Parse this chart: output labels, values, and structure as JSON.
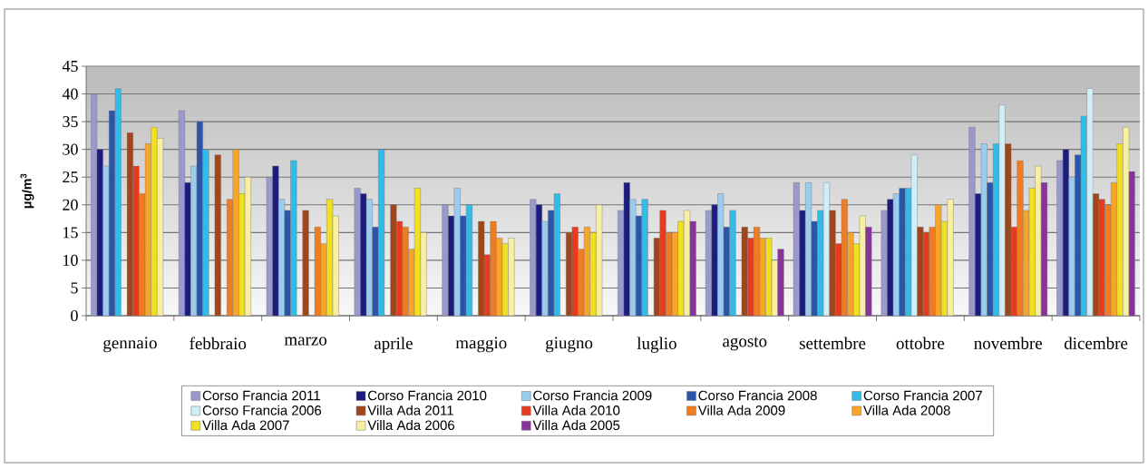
{
  "chart_data": {
    "type": "bar",
    "ylabel": "μg/m$^{3}$",
    "categories": [
      "gennaio",
      "febbraio",
      "marzo",
      "aprile",
      "maggio",
      "giugno",
      "luglio",
      "agosto",
      "settembre",
      "ottobre",
      "novembre",
      "dicembre"
    ],
    "series": [
      {
        "name": "Corso Francia 2011",
        "color": "#9999cc",
        "values": [
          40,
          37,
          25,
          23,
          20,
          21,
          19,
          19,
          24,
          19,
          34,
          28
        ]
      },
      {
        "name": "Corso Francia 2010",
        "color": "#1c1c80",
        "values": [
          30,
          24,
          27,
          22,
          18,
          20,
          24,
          20,
          19,
          21,
          22,
          30
        ]
      },
      {
        "name": "Corso Francia 2009",
        "color": "#99ccee",
        "values": [
          27,
          27,
          21,
          21,
          23,
          17,
          21,
          22,
          24,
          22,
          31,
          25
        ]
      },
      {
        "name": "Corso Francia 2008",
        "color": "#2a55a8",
        "values": [
          37,
          35,
          19,
          16,
          18,
          19,
          18,
          16,
          17,
          23,
          24,
          29
        ]
      },
      {
        "name": "Corso Francia 2007",
        "color": "#33bbe8",
        "values": [
          41,
          30,
          28,
          30,
          20,
          22,
          21,
          19,
          19,
          23,
          31,
          36
        ]
      },
      {
        "name": "Corso Francia 2006",
        "color": "#d0eef8",
        "values": [
          null,
          null,
          null,
          null,
          null,
          null,
          null,
          null,
          24,
          29,
          38,
          41
        ]
      },
      {
        "name": "Villa Ada 2011",
        "color": "#a0461a",
        "values": [
          33,
          29,
          19,
          20,
          17,
          15,
          14,
          16,
          19,
          16,
          31,
          22
        ]
      },
      {
        "name": "Villa Ada 2010",
        "color": "#e83a1e",
        "values": [
          27,
          null,
          null,
          17,
          11,
          16,
          19,
          14,
          13,
          15,
          16,
          21
        ]
      },
      {
        "name": "Villa Ada 2009",
        "color": "#f07c22",
        "values": [
          22,
          21,
          16,
          16,
          17,
          12,
          15,
          16,
          21,
          16,
          28,
          20
        ]
      },
      {
        "name": "Villa Ada 2008",
        "color": "#f8a428",
        "values": [
          31,
          30,
          13,
          12,
          14,
          16,
          15,
          14,
          15,
          20,
          19,
          24
        ]
      },
      {
        "name": "Villa Ada 2007",
        "color": "#f0e020",
        "values": [
          34,
          22,
          21,
          23,
          13,
          15,
          17,
          14,
          13,
          17,
          23,
          31
        ]
      },
      {
        "name": "Villa Ada 2006",
        "color": "#f8f0a0",
        "values": [
          32,
          25,
          18,
          15,
          14,
          20,
          19,
          10,
          18,
          21,
          27,
          34
        ]
      },
      {
        "name": "Villa Ada 2005",
        "color": "#883399",
        "values": [
          null,
          null,
          null,
          null,
          null,
          null,
          17,
          12,
          16,
          null,
          24,
          26
        ]
      }
    ],
    "ylim": [
      0,
      45
    ],
    "yticks": [
      0,
      5,
      10,
      15,
      20,
      25,
      30,
      35,
      40,
      45
    ],
    "grid": "y",
    "legend": "bottom"
  }
}
